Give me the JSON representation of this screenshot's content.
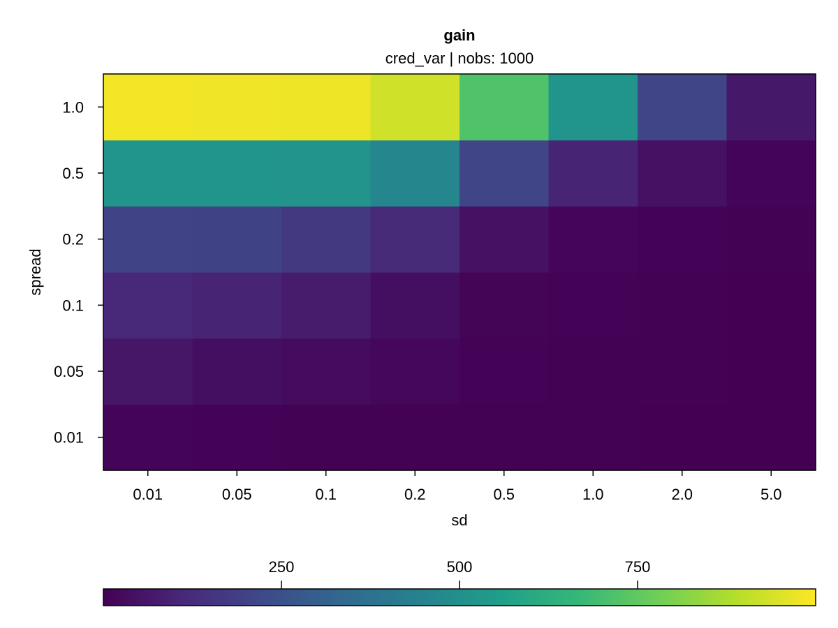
{
  "chart_data": {
    "type": "heatmap",
    "title": "gain",
    "subtitle": "cred_var | nobs: 1000",
    "xlabel": "sd",
    "ylabel": "spread",
    "x_categories": [
      "0.01",
      "0.05",
      "0.1",
      "0.2",
      "0.5",
      "1.0",
      "2.0",
      "5.0"
    ],
    "y_categories": [
      "0.01",
      "0.05",
      "0.1",
      "0.2",
      "0.5",
      "1.0"
    ],
    "values": [
      [
        12,
        5,
        4,
        3,
        2,
        2,
        1,
        1
      ],
      [
        60,
        40,
        28,
        18,
        6,
        3,
        2,
        1
      ],
      [
        115,
        100,
        78,
        40,
        10,
        5,
        2,
        1
      ],
      [
        205,
        200,
        170,
        120,
        45,
        15,
        5,
        2
      ],
      [
        520,
        520,
        515,
        460,
        210,
        100,
        45,
        12
      ],
      [
        985,
        980,
        975,
        930,
        720,
        520,
        210,
        65
      ]
    ],
    "colormap": "viridis",
    "colorbar": {
      "range": [
        0,
        1000
      ],
      "ticks": [
        250,
        500,
        750
      ],
      "tick_labels": [
        "250",
        "500",
        "750"
      ],
      "placement": "bottom"
    },
    "grid": false
  }
}
